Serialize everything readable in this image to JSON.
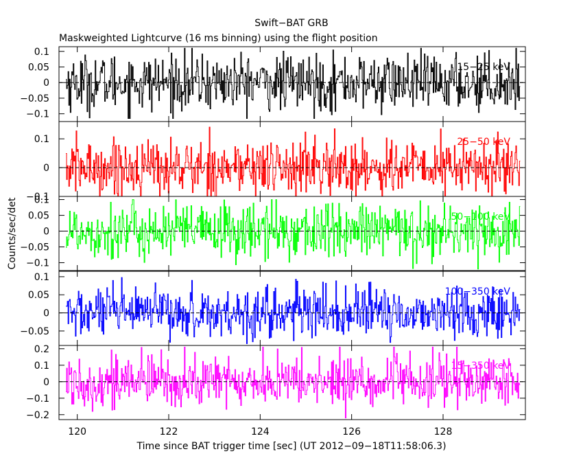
{
  "chart_data": {
    "type": "line",
    "title": "Swift−BAT GRB",
    "subtitle": "Maskweighted Lightcurve (16 ms binning) using the flight position",
    "xlabel": "Time since BAT trigger time [sec] (UT 2012−09−18T11:58:06.3)",
    "ylabel": "Counts/sec/det",
    "xlim": [
      119.6,
      129.8
    ],
    "x_ticks": [
      {
        "value": 120,
        "label": "120"
      },
      {
        "value": 122,
        "label": "122"
      },
      {
        "value": 124,
        "label": "124"
      },
      {
        "value": 126,
        "label": "126"
      },
      {
        "value": 128,
        "label": "128"
      }
    ],
    "binning_s": 0.016,
    "data_range": [
      119.75,
      129.7
    ],
    "panels": [
      {
        "name": "15-25 keV",
        "label": "15−25 keV",
        "color": "#000000",
        "ylim": [
          -0.125,
          0.115
        ],
        "yticks": [
          {
            "value": 0.1,
            "label": "0.1"
          },
          {
            "value": 0.05,
            "label": "0.05"
          },
          {
            "value": 0,
            "label": "0"
          },
          {
            "value": -0.05,
            "label": "−0.05"
          },
          {
            "value": -0.1,
            "label": "−0.1"
          }
        ],
        "noise_sigma": 0.045,
        "clip": [
          -0.115,
          0.11
        ]
      },
      {
        "name": "25-50 keV",
        "label": "25−50 keV",
        "color": "#ff0000",
        "ylim": [
          -0.1,
          0.16
        ],
        "yticks": [
          {
            "value": 0.1,
            "label": "0.1"
          },
          {
            "value": 0,
            "label": "0"
          },
          {
            "value": -0.1,
            "label": "−0.1"
          }
        ],
        "noise_sigma": 0.05,
        "clip": [
          -0.1,
          0.15
        ]
      },
      {
        "name": "50-100 keV",
        "label": "50−100 keV",
        "color": "#00ff00",
        "ylim": [
          -0.125,
          0.11
        ],
        "yticks": [
          {
            "value": 0.1,
            "label": "0.1"
          },
          {
            "value": 0.05,
            "label": "0.05"
          },
          {
            "value": 0,
            "label": "0"
          },
          {
            "value": -0.05,
            "label": "−0.05"
          },
          {
            "value": -0.1,
            "label": "−0.1"
          }
        ],
        "noise_sigma": 0.045,
        "clip": [
          -0.12,
          0.1
        ]
      },
      {
        "name": "100-350 keV",
        "label": "100−350 keV",
        "color": "#0000ff",
        "ylim": [
          -0.09,
          0.115
        ],
        "yticks": [
          {
            "value": 0.1,
            "label": "0.1"
          },
          {
            "value": 0.05,
            "label": "0.05"
          },
          {
            "value": 0,
            "label": "0"
          },
          {
            "value": -0.05,
            "label": "−0.05"
          }
        ],
        "noise_sigma": 0.035,
        "clip": [
          -0.085,
          0.11
        ]
      },
      {
        "name": "15-350 keV",
        "label": "15−350 keV",
        "color": "#ff00ff",
        "ylim": [
          -0.23,
          0.22
        ],
        "yticks": [
          {
            "value": 0.2,
            "label": "0.2"
          },
          {
            "value": 0.1,
            "label": "0.1"
          },
          {
            "value": 0,
            "label": "0"
          },
          {
            "value": -0.1,
            "label": "−0.1"
          },
          {
            "value": -0.2,
            "label": "−0.2"
          }
        ],
        "noise_sigma": 0.08,
        "clip": [
          -0.22,
          0.21
        ]
      }
    ]
  }
}
